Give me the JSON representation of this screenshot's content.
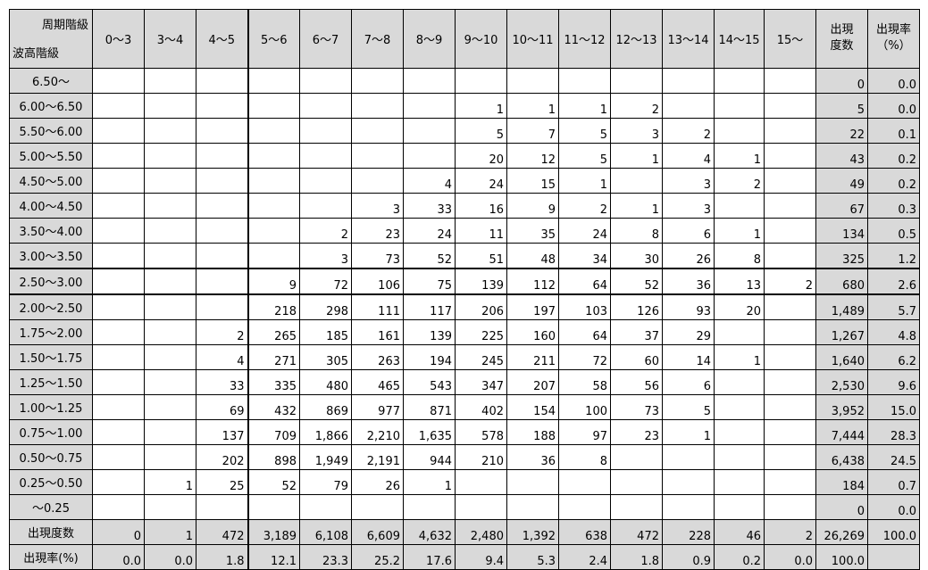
{
  "header": {
    "period_label": "周期階級",
    "wave_label": "波高階級",
    "columns": [
      "0～3",
      "3～4",
      "4～5",
      "5～6",
      "6～7",
      "7～8",
      "8～9",
      "9～10",
      "10～11",
      "11～12",
      "12～13",
      "13～14",
      "14～15",
      "15～"
    ],
    "total_label_line1": "出現",
    "total_label_line2": "度数",
    "rate_label_line1": "出現率",
    "rate_label_line2": "（%）"
  },
  "rows": [
    {
      "label": "6.50～",
      "cells": [
        "",
        "",
        "",
        "",
        "",
        "",
        "",
        "",
        "",
        "",
        "",
        "",
        "",
        ""
      ],
      "total": "0",
      "rate": "0.0"
    },
    {
      "label": "6.00～6.50",
      "cells": [
        "",
        "",
        "",
        "",
        "",
        "",
        "",
        "1",
        "1",
        "1",
        "2",
        "",
        "",
        ""
      ],
      "total": "5",
      "rate": "0.0"
    },
    {
      "label": "5.50～6.00",
      "cells": [
        "",
        "",
        "",
        "",
        "",
        "",
        "",
        "5",
        "7",
        "5",
        "3",
        "2",
        "",
        ""
      ],
      "total": "22",
      "rate": "0.1"
    },
    {
      "label": "5.00～5.50",
      "cells": [
        "",
        "",
        "",
        "",
        "",
        "",
        "",
        "20",
        "12",
        "5",
        "1",
        "4",
        "1",
        ""
      ],
      "total": "43",
      "rate": "0.2"
    },
    {
      "label": "4.50～5.00",
      "cells": [
        "",
        "",
        "",
        "",
        "",
        "",
        "4",
        "24",
        "15",
        "1",
        "",
        "3",
        "2",
        ""
      ],
      "total": "49",
      "rate": "0.2"
    },
    {
      "label": "4.00～4.50",
      "cells": [
        "",
        "",
        "",
        "",
        "",
        "3",
        "33",
        "16",
        "9",
        "2",
        "1",
        "3",
        "",
        ""
      ],
      "total": "67",
      "rate": "0.3"
    },
    {
      "label": "3.50～4.00",
      "cells": [
        "",
        "",
        "",
        "",
        "2",
        "23",
        "24",
        "11",
        "35",
        "24",
        "8",
        "6",
        "1",
        ""
      ],
      "total": "134",
      "rate": "0.5"
    },
    {
      "label": "3.00～3.50",
      "cells": [
        "",
        "",
        "",
        "",
        "3",
        "73",
        "52",
        "51",
        "48",
        "34",
        "30",
        "26",
        "8",
        ""
      ],
      "total": "325",
      "rate": "1.2"
    },
    {
      "label": "2.50～3.00",
      "cells": [
        "",
        "",
        "",
        "9",
        "72",
        "106",
        "75",
        "139",
        "112",
        "64",
        "52",
        "36",
        "13",
        "2"
      ],
      "total": "680",
      "rate": "2.6"
    },
    {
      "label": "2.00～2.50",
      "cells": [
        "",
        "",
        "",
        "218",
        "298",
        "111",
        "117",
        "206",
        "197",
        "103",
        "126",
        "93",
        "20",
        ""
      ],
      "total": "1,489",
      "rate": "5.7"
    },
    {
      "label": "1.75～2.00",
      "cells": [
        "",
        "",
        "2",
        "265",
        "185",
        "161",
        "139",
        "225",
        "160",
        "64",
        "37",
        "29",
        "",
        ""
      ],
      "total": "1,267",
      "rate": "4.8"
    },
    {
      "label": "1.50～1.75",
      "cells": [
        "",
        "",
        "4",
        "271",
        "305",
        "263",
        "194",
        "245",
        "211",
        "72",
        "60",
        "14",
        "1",
        ""
      ],
      "total": "1,640",
      "rate": "6.2"
    },
    {
      "label": "1.25～1.50",
      "cells": [
        "",
        "",
        "33",
        "335",
        "480",
        "465",
        "543",
        "347",
        "207",
        "58",
        "56",
        "6",
        "",
        ""
      ],
      "total": "2,530",
      "rate": "9.6"
    },
    {
      "label": "1.00～1.25",
      "cells": [
        "",
        "",
        "69",
        "432",
        "869",
        "977",
        "871",
        "402",
        "154",
        "100",
        "73",
        "5",
        "",
        ""
      ],
      "total": "3,952",
      "rate": "15.0"
    },
    {
      "label": "0.75～1.00",
      "cells": [
        "",
        "",
        "137",
        "709",
        "1,866",
        "2,210",
        "1,635",
        "578",
        "188",
        "97",
        "23",
        "1",
        "",
        ""
      ],
      "total": "7,444",
      "rate": "28.3"
    },
    {
      "label": "0.50～0.75",
      "cells": [
        "",
        "",
        "202",
        "898",
        "1,949",
        "2,191",
        "944",
        "210",
        "36",
        "8",
        "",
        "",
        "",
        ""
      ],
      "total": "6,438",
      "rate": "24.5"
    },
    {
      "label": "0.25～0.50",
      "cells": [
        "",
        "1",
        "25",
        "52",
        "79",
        "26",
        "1",
        "",
        "",
        "",
        "",
        "",
        "",
        ""
      ],
      "total": "184",
      "rate": "0.7"
    },
    {
      "label": "～0.25",
      "cells": [
        "",
        "",
        "",
        "",
        "",
        "",
        "",
        "",
        "",
        "",
        "",
        "",
        "",
        ""
      ],
      "total": "0",
      "rate": "0.0"
    }
  ],
  "totals": [
    {
      "label": "出現度数",
      "cells": [
        "0",
        "1",
        "472",
        "3,189",
        "6,108",
        "6,609",
        "4,632",
        "2,480",
        "1,392",
        "638",
        "472",
        "228",
        "46",
        "2"
      ],
      "total": "26,269",
      "rate": "100.0"
    },
    {
      "label": "出現率(%)",
      "cells": [
        "0.0",
        "0.0",
        "1.8",
        "12.1",
        "23.3",
        "25.2",
        "17.6",
        "9.4",
        "5.3",
        "2.4",
        "1.8",
        "0.9",
        "0.2",
        "0.0"
      ],
      "total": "100.0",
      "rate": ""
    }
  ],
  "colors": {
    "header_bg": "#d9d9d9",
    "cell_bg": "#ffffff",
    "border": "#000000"
  }
}
